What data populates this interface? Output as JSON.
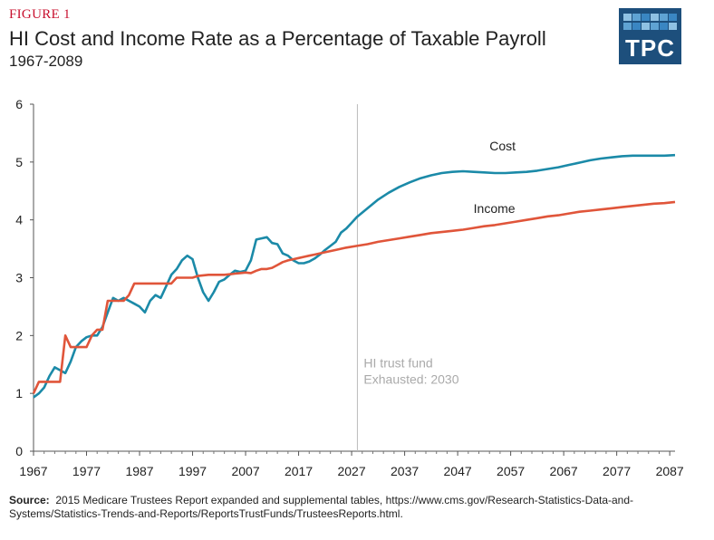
{
  "figure_label": "FIGURE 1",
  "logo": {
    "text": "TPC",
    "bg": "#1d4f7c",
    "squares": [
      "#8fc1e3",
      "#5fa3d3",
      "#3a86c2"
    ]
  },
  "source_label": "Source:",
  "source_text": "2015 Medicare Trustees Report expanded and supplemental tables, https://www.cms.gov/Research-Statistics-Data-and-Systems/Statistics-Trends-and-Reports/ReportsTrustFunds/TrusteesReports.html.",
  "chart_data": {
    "type": "line",
    "title": "HI Cost and Income Rate as a Percentage of Taxable Payroll",
    "subtitle": "1967-2089",
    "xlim": [
      1967,
      2088
    ],
    "ylim": [
      0,
      6
    ],
    "xticks": [
      1967,
      1977,
      1987,
      1997,
      2007,
      2017,
      2027,
      2037,
      2047,
      2057,
      2067,
      2077,
      2087
    ],
    "yticks": [
      0,
      1,
      2,
      3,
      4,
      5,
      6
    ],
    "grid": false,
    "annotation": {
      "x": 2028,
      "lines": [
        "HI trust fund",
        "Exhausted: 2030"
      ]
    },
    "series": [
      {
        "name": "Cost",
        "color": "#1b8aa8",
        "points": [
          [
            1967,
            0.93
          ],
          [
            1968,
            1.0
          ],
          [
            1969,
            1.1
          ],
          [
            1970,
            1.3
          ],
          [
            1971,
            1.45
          ],
          [
            1972,
            1.4
          ],
          [
            1973,
            1.35
          ],
          [
            1974,
            1.55
          ],
          [
            1975,
            1.8
          ],
          [
            1976,
            1.9
          ],
          [
            1977,
            1.97
          ],
          [
            1978,
            2.0
          ],
          [
            1979,
            2.0
          ],
          [
            1980,
            2.15
          ],
          [
            1981,
            2.4
          ],
          [
            1982,
            2.65
          ],
          [
            1983,
            2.6
          ],
          [
            1984,
            2.65
          ],
          [
            1985,
            2.6
          ],
          [
            1986,
            2.55
          ],
          [
            1987,
            2.5
          ],
          [
            1988,
            2.4
          ],
          [
            1989,
            2.6
          ],
          [
            1990,
            2.7
          ],
          [
            1991,
            2.65
          ],
          [
            1992,
            2.85
          ],
          [
            1993,
            3.05
          ],
          [
            1994,
            3.15
          ],
          [
            1995,
            3.3
          ],
          [
            1996,
            3.38
          ],
          [
            1997,
            3.32
          ],
          [
            1998,
            3.0
          ],
          [
            1999,
            2.75
          ],
          [
            2000,
            2.6
          ],
          [
            2001,
            2.75
          ],
          [
            2002,
            2.93
          ],
          [
            2003,
            2.97
          ],
          [
            2004,
            3.05
          ],
          [
            2005,
            3.12
          ],
          [
            2006,
            3.1
          ],
          [
            2007,
            3.12
          ],
          [
            2008,
            3.3
          ],
          [
            2009,
            3.66
          ],
          [
            2010,
            3.68
          ],
          [
            2011,
            3.7
          ],
          [
            2012,
            3.6
          ],
          [
            2013,
            3.58
          ],
          [
            2014,
            3.42
          ],
          [
            2015,
            3.38
          ],
          [
            2016,
            3.3
          ],
          [
            2017,
            3.25
          ],
          [
            2018,
            3.25
          ],
          [
            2019,
            3.28
          ],
          [
            2020,
            3.33
          ],
          [
            2021,
            3.4
          ],
          [
            2022,
            3.48
          ],
          [
            2023,
            3.55
          ],
          [
            2024,
            3.62
          ],
          [
            2025,
            3.78
          ],
          [
            2026,
            3.85
          ],
          [
            2027,
            3.95
          ],
          [
            2028,
            4.05
          ],
          [
            2030,
            4.2
          ],
          [
            2032,
            4.35
          ],
          [
            2034,
            4.47
          ],
          [
            2036,
            4.57
          ],
          [
            2038,
            4.65
          ],
          [
            2040,
            4.72
          ],
          [
            2042,
            4.77
          ],
          [
            2044,
            4.81
          ],
          [
            2046,
            4.83
          ],
          [
            2048,
            4.84
          ],
          [
            2050,
            4.83
          ],
          [
            2052,
            4.82
          ],
          [
            2054,
            4.81
          ],
          [
            2056,
            4.81
          ],
          [
            2058,
            4.82
          ],
          [
            2060,
            4.83
          ],
          [
            2062,
            4.85
          ],
          [
            2064,
            4.88
          ],
          [
            2066,
            4.91
          ],
          [
            2068,
            4.95
          ],
          [
            2070,
            4.99
          ],
          [
            2072,
            5.03
          ],
          [
            2074,
            5.06
          ],
          [
            2076,
            5.08
          ],
          [
            2078,
            5.1
          ],
          [
            2080,
            5.11
          ],
          [
            2082,
            5.11
          ],
          [
            2084,
            5.11
          ],
          [
            2086,
            5.11
          ],
          [
            2088,
            5.12
          ]
        ]
      },
      {
        "name": "Income",
        "color": "#e0553a",
        "points": [
          [
            1967,
            1.0
          ],
          [
            1968,
            1.2
          ],
          [
            1969,
            1.2
          ],
          [
            1970,
            1.2
          ],
          [
            1971,
            1.2
          ],
          [
            1972,
            1.2
          ],
          [
            1973,
            2.0
          ],
          [
            1974,
            1.8
          ],
          [
            1975,
            1.8
          ],
          [
            1976,
            1.8
          ],
          [
            1977,
            1.8
          ],
          [
            1978,
            2.0
          ],
          [
            1979,
            2.1
          ],
          [
            1980,
            2.1
          ],
          [
            1981,
            2.6
          ],
          [
            1982,
            2.6
          ],
          [
            1983,
            2.6
          ],
          [
            1984,
            2.6
          ],
          [
            1985,
            2.7
          ],
          [
            1986,
            2.9
          ],
          [
            1987,
            2.9
          ],
          [
            1988,
            2.9
          ],
          [
            1989,
            2.9
          ],
          [
            1990,
            2.9
          ],
          [
            1991,
            2.9
          ],
          [
            1992,
            2.9
          ],
          [
            1993,
            2.9
          ],
          [
            1994,
            3.0
          ],
          [
            1995,
            3.0
          ],
          [
            1996,
            3.0
          ],
          [
            1997,
            3.0
          ],
          [
            1998,
            3.03
          ],
          [
            1999,
            3.04
          ],
          [
            2000,
            3.05
          ],
          [
            2001,
            3.05
          ],
          [
            2002,
            3.05
          ],
          [
            2003,
            3.05
          ],
          [
            2004,
            3.06
          ],
          [
            2005,
            3.07
          ],
          [
            2006,
            3.08
          ],
          [
            2007,
            3.09
          ],
          [
            2008,
            3.08
          ],
          [
            2009,
            3.12
          ],
          [
            2010,
            3.15
          ],
          [
            2011,
            3.15
          ],
          [
            2012,
            3.17
          ],
          [
            2013,
            3.22
          ],
          [
            2014,
            3.27
          ],
          [
            2015,
            3.3
          ],
          [
            2016,
            3.32
          ],
          [
            2017,
            3.34
          ],
          [
            2018,
            3.36
          ],
          [
            2019,
            3.38
          ],
          [
            2020,
            3.4
          ],
          [
            2022,
            3.44
          ],
          [
            2024,
            3.48
          ],
          [
            2026,
            3.52
          ],
          [
            2028,
            3.55
          ],
          [
            2030,
            3.58
          ],
          [
            2032,
            3.62
          ],
          [
            2034,
            3.65
          ],
          [
            2036,
            3.68
          ],
          [
            2038,
            3.71
          ],
          [
            2040,
            3.74
          ],
          [
            2042,
            3.77
          ],
          [
            2044,
            3.79
          ],
          [
            2046,
            3.81
          ],
          [
            2048,
            3.83
          ],
          [
            2050,
            3.86
          ],
          [
            2052,
            3.89
          ],
          [
            2054,
            3.91
          ],
          [
            2056,
            3.94
          ],
          [
            2058,
            3.97
          ],
          [
            2060,
            4.0
          ],
          [
            2062,
            4.03
          ],
          [
            2064,
            4.06
          ],
          [
            2066,
            4.08
          ],
          [
            2068,
            4.11
          ],
          [
            2070,
            4.14
          ],
          [
            2072,
            4.16
          ],
          [
            2074,
            4.18
          ],
          [
            2076,
            4.2
          ],
          [
            2078,
            4.22
          ],
          [
            2080,
            4.24
          ],
          [
            2082,
            4.26
          ],
          [
            2084,
            4.28
          ],
          [
            2086,
            4.29
          ],
          [
            2088,
            4.31
          ]
        ]
      }
    ]
  }
}
